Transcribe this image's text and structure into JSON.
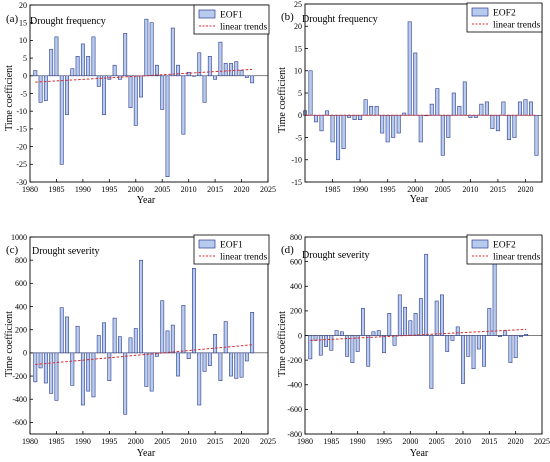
{
  "charts": [
    {
      "panel_label": "(a)",
      "title": "Drought frequency",
      "legend": [
        "EOF1",
        "linear trends"
      ],
      "x_tick_labels": [
        "1980",
        "1985",
        "1990",
        "1995",
        "2000",
        "2005",
        "2010",
        "2015",
        "2020",
        "2025"
      ],
      "y_tick_labels": [
        "-30",
        "-25",
        "-20",
        "-15",
        "-10",
        "-5",
        "0",
        "5",
        "10",
        "15",
        "20"
      ],
      "xlabel": "Year",
      "ylabel": "Time coefficient"
    },
    {
      "panel_label": "(b)",
      "title": "Drought frequency",
      "legend": [
        "EOF2",
        "linear trends"
      ],
      "x_tick_labels": [
        "1985",
        "1990",
        "1995",
        "2000",
        "2005",
        "2010",
        "2015",
        "2020"
      ],
      "y_tick_labels": [
        "-15",
        "-10",
        "-5",
        "0",
        "5",
        "10",
        "15",
        "20",
        "25"
      ],
      "xlabel": "Year",
      "ylabel": "Time coefficient"
    },
    {
      "panel_label": "(c)",
      "title": "Drought severity",
      "legend": [
        "EOF1",
        "linear trends"
      ],
      "x_tick_labels": [
        "1980",
        "1985",
        "1990",
        "1995",
        "2000",
        "2005",
        "2010",
        "2015",
        "2020",
        "2025"
      ],
      "y_tick_labels": [
        "-600",
        "-400",
        "-200",
        "0",
        "200",
        "400",
        "600",
        "800",
        "1000"
      ],
      "xlabel": "Year",
      "ylabel": "Time coefficient"
    },
    {
      "panel_label": "(d)",
      "title": "Drought severity",
      "legend": [
        "EOF2",
        "linear trends"
      ],
      "x_tick_labels": [
        "1980",
        "1985",
        "1990",
        "1995",
        "2000",
        "2005",
        "2010",
        "2015",
        "2020",
        "2025"
      ],
      "y_tick_labels": [
        "-800",
        "-600",
        "-400",
        "-200",
        "0",
        "200",
        "400",
        "600",
        "800"
      ],
      "xlabel": "Year",
      "ylabel": "Time coefficient"
    }
  ],
  "colors": {
    "bar_fill": "#b7cbee",
    "bar_edge": "#2d3b8c",
    "trend": "#d9282f",
    "axis": "#000000"
  },
  "chart_data": [
    {
      "type": "bar",
      "xlim": [
        1980,
        2025
      ],
      "ylim": [
        -30,
        20
      ],
      "x": [
        1981,
        1982,
        1983,
        1984,
        1985,
        1986,
        1987,
        1988,
        1989,
        1990,
        1991,
        1992,
        1993,
        1994,
        1995,
        1996,
        1997,
        1998,
        1999,
        2000,
        2001,
        2002,
        2003,
        2004,
        2005,
        2006,
        2007,
        2008,
        2009,
        2010,
        2011,
        2012,
        2013,
        2014,
        2015,
        2016,
        2017,
        2018,
        2019,
        2020,
        2021,
        2022
      ],
      "series": [
        {
          "name": "EOF1",
          "values": [
            1.5,
            -7.5,
            -7,
            7.5,
            11,
            -25,
            -11,
            2,
            5.5,
            9,
            5.5,
            11,
            -3,
            -11,
            -1,
            3,
            -1,
            12,
            -9,
            -14,
            -6,
            16,
            15,
            3,
            -9.5,
            -28.5,
            13.5,
            3,
            -16.5,
            1,
            0,
            6.5,
            -7.5,
            5.5,
            -1,
            9.5,
            3.5,
            3.5,
            4,
            1.5,
            -0.5,
            -2
          ]
        },
        {
          "name": "linear trends",
          "type": "line",
          "x": [
            1981,
            2022
          ],
          "values": [
            -1.8,
            1.8
          ]
        }
      ]
    },
    {
      "type": "bar",
      "xlim": [
        1980,
        2023
      ],
      "ylim": [
        -15,
        25
      ],
      "x": [
        1980,
        1981,
        1982,
        1983,
        1984,
        1985,
        1986,
        1987,
        1988,
        1989,
        1990,
        1991,
        1992,
        1993,
        1994,
        1995,
        1996,
        1997,
        1998,
        1999,
        2000,
        2001,
        2002,
        2003,
        2004,
        2005,
        2006,
        2007,
        2008,
        2009,
        2010,
        2011,
        2012,
        2013,
        2014,
        2015,
        2016,
        2017,
        2018,
        2019,
        2020,
        2021,
        2022
      ],
      "series": [
        {
          "name": "EOF2",
          "values": [
            1,
            10,
            -1.5,
            -3.5,
            1,
            -6,
            -10,
            -7.5,
            -0.5,
            -1,
            -1,
            3.5,
            2,
            2,
            -4,
            -6,
            -5,
            -4,
            0.5,
            21,
            14,
            -6,
            0,
            2.5,
            6,
            -9,
            -5,
            5,
            2,
            7.5,
            -0.5,
            -0.5,
            2.5,
            3,
            -3,
            -3.5,
            3,
            -5.5,
            -5,
            3,
            3.5,
            3,
            -9
          ]
        },
        {
          "name": "linear trends",
          "type": "line",
          "x": [
            1980,
            2022
          ],
          "values": [
            0,
            0
          ]
        }
      ]
    },
    {
      "type": "bar",
      "xlim": [
        1980,
        2025
      ],
      "ylim": [
        -700,
        1000
      ],
      "x": [
        1981,
        1982,
        1983,
        1984,
        1985,
        1986,
        1987,
        1988,
        1989,
        1990,
        1991,
        1992,
        1993,
        1994,
        1995,
        1996,
        1997,
        1998,
        1999,
        2000,
        2001,
        2002,
        2003,
        2004,
        2005,
        2006,
        2007,
        2008,
        2009,
        2010,
        2011,
        2012,
        2013,
        2014,
        2015,
        2016,
        2017,
        2018,
        2019,
        2020,
        2021,
        2022
      ],
      "series": [
        {
          "name": "EOF1",
          "values": [
            -250,
            -130,
            -260,
            -350,
            -410,
            390,
            310,
            -280,
            230,
            -450,
            -330,
            -380,
            150,
            260,
            -240,
            300,
            140,
            -530,
            130,
            210,
            800,
            -290,
            -330,
            -30,
            450,
            190,
            240,
            -200,
            410,
            -50,
            730,
            -450,
            -160,
            -110,
            160,
            -240,
            270,
            -200,
            -220,
            -210,
            -70,
            350
          ]
        },
        {
          "name": "linear trends",
          "type": "line",
          "x": [
            1981,
            2022
          ],
          "values": [
            -100,
            70
          ]
        }
      ]
    },
    {
      "type": "bar",
      "xlim": [
        1980,
        2025
      ],
      "ylim": [
        -800,
        800
      ],
      "x": [
        1981,
        1982,
        1983,
        1984,
        1985,
        1986,
        1987,
        1988,
        1989,
        1990,
        1991,
        1992,
        1993,
        1994,
        1995,
        1996,
        1997,
        1998,
        1999,
        2000,
        2001,
        2002,
        2003,
        2004,
        2005,
        2006,
        2007,
        2008,
        2009,
        2010,
        2011,
        2012,
        2013,
        2014,
        2015,
        2016,
        2017,
        2018,
        2019,
        2020,
        2021,
        2022
      ],
      "series": [
        {
          "name": "EOF2",
          "values": [
            -190,
            -40,
            -160,
            -90,
            -120,
            40,
            30,
            -170,
            -220,
            -130,
            220,
            -250,
            30,
            40,
            -140,
            180,
            -80,
            330,
            230,
            120,
            180,
            300,
            660,
            -430,
            280,
            330,
            -130,
            -40,
            70,
            -390,
            -170,
            -270,
            -110,
            -250,
            220,
            680,
            -10,
            40,
            -220,
            -180,
            -10,
            10
          ]
        },
        {
          "name": "linear trends",
          "type": "line",
          "x": [
            1981,
            2022
          ],
          "values": [
            -40,
            50
          ]
        }
      ]
    }
  ]
}
